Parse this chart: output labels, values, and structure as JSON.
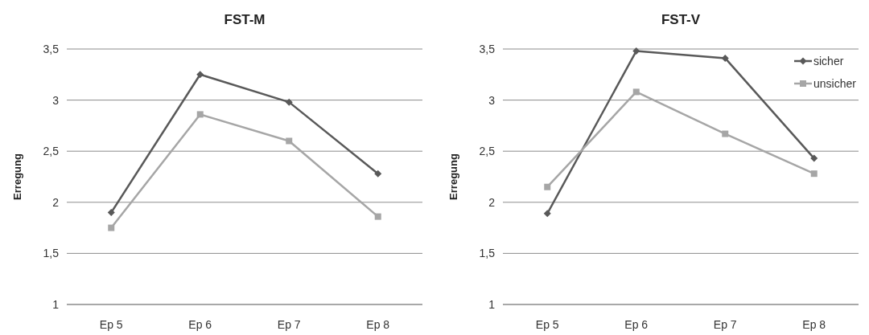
{
  "chart_data": [
    {
      "type": "line",
      "title": "FST-M",
      "ylabel": "Erregung",
      "categories": [
        "Ep 5",
        "Ep 6",
        "Ep 7",
        "Ep 8"
      ],
      "series": [
        {
          "color": "#595959",
          "marker": "diamond",
          "values": [
            1.9,
            3.25,
            2.98,
            2.28
          ]
        },
        {
          "color": "#a6a6a6",
          "marker": "square",
          "values": [
            1.75,
            2.86,
            2.6,
            1.86
          ]
        }
      ],
      "ylim": [
        1,
        3.5
      ],
      "yticks": [
        1,
        {
          "value": 1.5,
          "label": "1,5"
        },
        2,
        {
          "value": 2.5,
          "label": "2,5"
        },
        3,
        {
          "value": 3.5,
          "label": "3,5"
        }
      ],
      "grid": "y",
      "legend": false
    },
    {
      "type": "line",
      "title": "FST-V",
      "ylabel": "Erregung",
      "categories": [
        "Ep 5",
        "Ep 6",
        "Ep 7",
        "Ep 8"
      ],
      "series": [
        {
          "name": "sicher",
          "color": "#595959",
          "marker": "diamond",
          "values": [
            1.89,
            3.48,
            3.41,
            2.43
          ]
        },
        {
          "name": "unsicher",
          "color": "#a6a6a6",
          "marker": "square",
          "values": [
            2.15,
            3.08,
            2.67,
            2.28
          ]
        }
      ],
      "ylim": [
        1,
        3.5
      ],
      "yticks": [
        1,
        {
          "value": 1.5,
          "label": "1,5"
        },
        2,
        {
          "value": 2.5,
          "label": "2,5"
        },
        3,
        {
          "value": 3.5,
          "label": "3,5"
        }
      ],
      "grid": "y",
      "legend": "top right"
    }
  ]
}
